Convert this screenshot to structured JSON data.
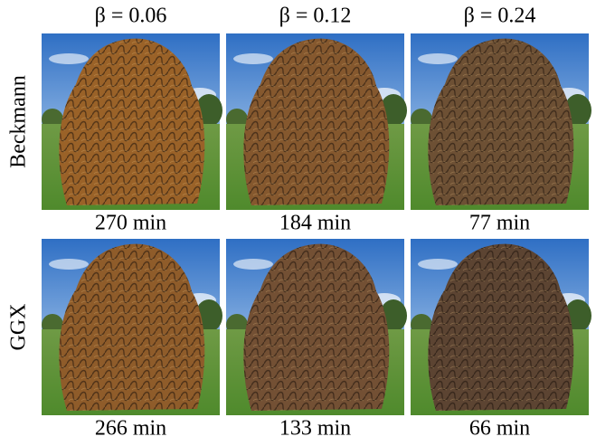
{
  "columns": [
    "β = 0.06",
    "β = 0.12",
    "β = 0.24"
  ],
  "rows": [
    {
      "label": "Beckmann",
      "times": [
        "270 min",
        "184 min",
        "77 min"
      ]
    },
    {
      "label": "GGX",
      "times": [
        "266 min",
        "133 min",
        "66 min"
      ]
    }
  ]
}
